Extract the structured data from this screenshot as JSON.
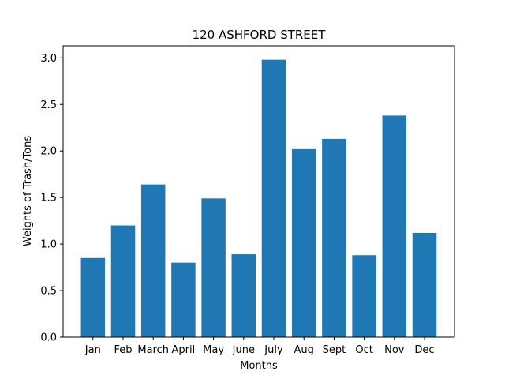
{
  "chart_data": {
    "type": "bar",
    "title": "120 ASHFORD STREET",
    "xlabel": "Months",
    "ylabel": "Weights of Trash/Tons",
    "categories": [
      "Jan",
      "Feb",
      "March",
      "April",
      "May",
      "June",
      "July",
      "Aug",
      "Sept",
      "Oct",
      "Nov",
      "Dec"
    ],
    "values": [
      0.85,
      1.2,
      1.64,
      0.8,
      1.49,
      0.89,
      2.98,
      2.02,
      2.13,
      0.88,
      2.38,
      1.12
    ],
    "ylim": [
      0,
      3.13
    ],
    "yticks": [
      0.0,
      0.5,
      1.0,
      1.5,
      2.0,
      2.5,
      3.0
    ],
    "ytick_labels": [
      "0.0",
      "0.5",
      "1.0",
      "1.5",
      "2.0",
      "2.5",
      "3.0"
    ],
    "bar_color": "#1f77b4",
    "grid": false,
    "legend": "none"
  }
}
